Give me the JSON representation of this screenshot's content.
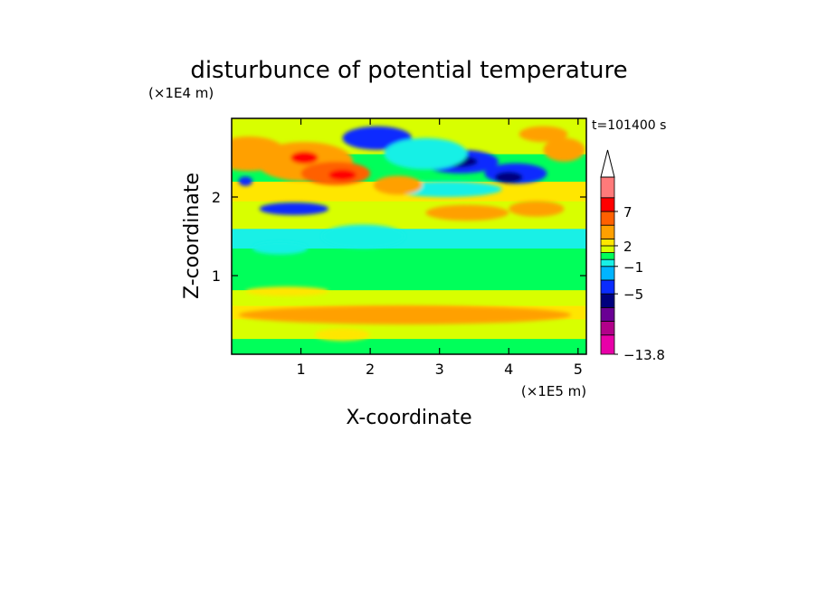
{
  "chart_data": {
    "type": "heatmap",
    "title": "disturbunce of potential temperature",
    "time_label": "t=101400 s",
    "xlabel": "X-coordinate",
    "ylabel": "Z-coordinate",
    "x_unit": "(×1E5 m)",
    "y_unit": "(×1E4 m)",
    "x_ticks": [
      "1",
      "2",
      "3",
      "4",
      "5"
    ],
    "x_tick_values": [
      1,
      2,
      3,
      4,
      5
    ],
    "y_ticks": [
      "1",
      "2"
    ],
    "y_tick_values": [
      1,
      2
    ],
    "xlim": [
      0,
      5.12
    ],
    "ylim": [
      0,
      3.0
    ],
    "colorbar": {
      "labels": [
        "7",
        "2",
        "−1",
        "−5",
        "−13.8"
      ],
      "label_values": [
        7,
        2,
        -1,
        -5,
        -13.8
      ],
      "levels": [
        -13.8,
        -11,
        -9,
        -7,
        -5,
        -3,
        -1,
        0,
        1,
        2,
        3,
        5,
        7,
        9,
        12
      ],
      "colors": [
        "#e800a8",
        "#b2008a",
        "#6a0094",
        "#00007e",
        "#0a2cff",
        "#00b4ff",
        "#19f0e6",
        "#00ff5a",
        "#d8ff00",
        "#ffe600",
        "#ffa000",
        "#ff6000",
        "#ff0000",
        "#ff7a7a",
        "#ffc8c8"
      ],
      "extend": "max"
    },
    "layers": [
      {
        "y": [
          0.0,
          0.2
        ],
        "fill": "#00ff5a"
      },
      {
        "y": [
          0.2,
          0.45
        ],
        "fill": "#d8ff00"
      },
      {
        "y": [
          0.45,
          0.62
        ],
        "fill": "#ffe600"
      },
      {
        "y": [
          0.62,
          0.82
        ],
        "fill": "#d8ff00"
      },
      {
        "y": [
          0.82,
          0.95
        ],
        "fill": "#00ff5a"
      },
      {
        "y": [
          0.95,
          1.35
        ],
        "fill": "#00ff5a"
      },
      {
        "y": [
          1.35,
          1.6
        ],
        "fill": "#19f0e6"
      },
      {
        "y": [
          1.6,
          1.95
        ],
        "fill": "#d8ff00"
      },
      {
        "y": [
          1.95,
          2.2
        ],
        "fill": "#ffe600"
      },
      {
        "y": [
          2.2,
          2.55
        ],
        "fill": "#00ff5a"
      },
      {
        "y": [
          2.55,
          3.0
        ],
        "fill": "#d8ff00"
      }
    ],
    "blobs": [
      {
        "x": 0.25,
        "y": 2.55,
        "rx": 0.55,
        "ry": 0.22,
        "fill": "#ffa000"
      },
      {
        "x": 1.05,
        "y": 2.45,
        "rx": 0.7,
        "ry": 0.25,
        "fill": "#ffa000"
      },
      {
        "x": 1.5,
        "y": 2.3,
        "rx": 0.5,
        "ry": 0.15,
        "fill": "#ff6000"
      },
      {
        "x": 1.05,
        "y": 2.5,
        "rx": 0.2,
        "ry": 0.08,
        "fill": "#ff0000"
      },
      {
        "x": 1.6,
        "y": 2.28,
        "rx": 0.2,
        "ry": 0.07,
        "fill": "#ff0000"
      },
      {
        "x": 0.2,
        "y": 2.2,
        "rx": 0.1,
        "ry": 0.06,
        "fill": "#0a2cff"
      },
      {
        "x": 0.9,
        "y": 1.85,
        "rx": 0.5,
        "ry": 0.08,
        "fill": "#0a2cff"
      },
      {
        "x": 2.1,
        "y": 2.75,
        "rx": 0.5,
        "ry": 0.15,
        "fill": "#0a2cff"
      },
      {
        "x": 3.3,
        "y": 2.45,
        "rx": 0.55,
        "ry": 0.15,
        "fill": "#0a2cff"
      },
      {
        "x": 4.1,
        "y": 2.3,
        "rx": 0.45,
        "ry": 0.13,
        "fill": "#0a2cff"
      },
      {
        "x": 3.3,
        "y": 2.45,
        "rx": 0.25,
        "ry": 0.07,
        "fill": "#00007e"
      },
      {
        "x": 4.0,
        "y": 2.25,
        "rx": 0.2,
        "ry": 0.07,
        "fill": "#00007e"
      },
      {
        "x": 2.8,
        "y": 2.55,
        "rx": 0.6,
        "ry": 0.2,
        "fill": "#19f0e6"
      },
      {
        "x": 3.1,
        "y": 2.1,
        "rx": 0.8,
        "ry": 0.1,
        "fill": "#19f0e6"
      },
      {
        "x": 2.4,
        "y": 2.15,
        "rx": 0.35,
        "ry": 0.12,
        "fill": "#ffa000"
      },
      {
        "x": 3.4,
        "y": 1.8,
        "rx": 0.6,
        "ry": 0.1,
        "fill": "#ffa000"
      },
      {
        "x": 4.4,
        "y": 1.85,
        "rx": 0.4,
        "ry": 0.1,
        "fill": "#ffa000"
      },
      {
        "x": 4.8,
        "y": 2.6,
        "rx": 0.3,
        "ry": 0.15,
        "fill": "#ffa000"
      },
      {
        "x": 4.5,
        "y": 2.8,
        "rx": 0.35,
        "ry": 0.1,
        "fill": "#ffa000"
      },
      {
        "x": 1.9,
        "y": 1.5,
        "rx": 0.6,
        "ry": 0.15,
        "fill": "#19f0e6"
      },
      {
        "x": 0.7,
        "y": 1.35,
        "rx": 0.4,
        "ry": 0.08,
        "fill": "#19f0e6"
      },
      {
        "x": 2.5,
        "y": 0.5,
        "rx": 2.4,
        "ry": 0.12,
        "fill": "#ffa000"
      },
      {
        "x": 0.8,
        "y": 0.8,
        "rx": 0.6,
        "ry": 0.06,
        "fill": "#ffe600"
      },
      {
        "x": 1.6,
        "y": 0.25,
        "rx": 0.4,
        "ry": 0.08,
        "fill": "#ffe600"
      },
      {
        "x": 4.4,
        "y": 0.05,
        "rx": 0.5,
        "ry": 0.06,
        "fill": "#00ff5a"
      }
    ]
  }
}
